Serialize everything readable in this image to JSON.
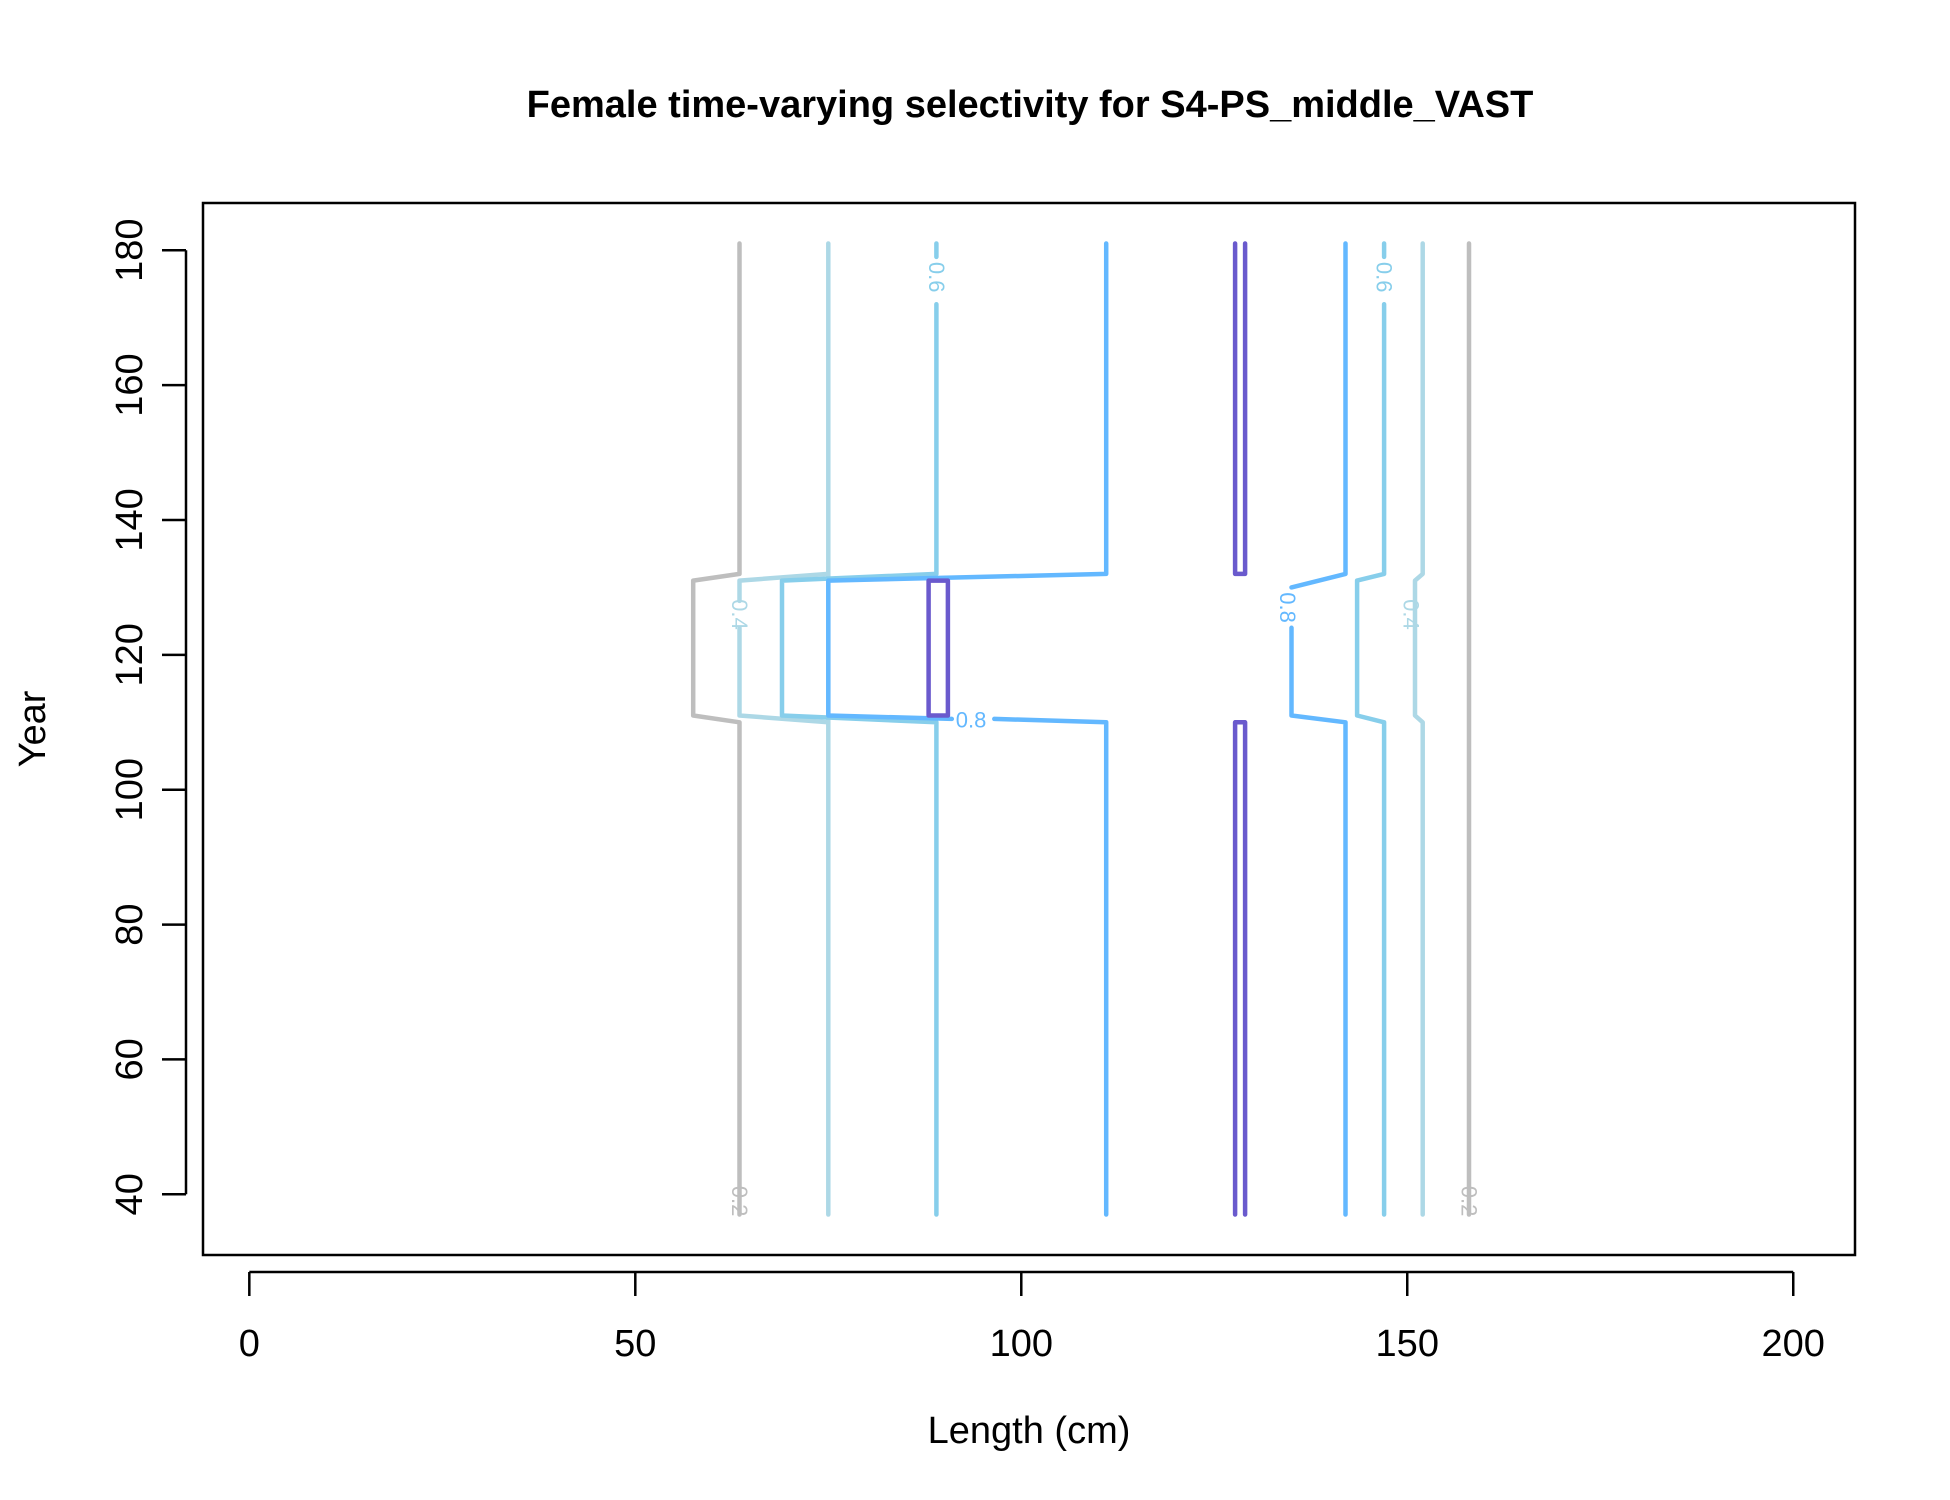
{
  "chart_data": {
    "type": "contour",
    "title": "Female time-varying selectivity for S4-PS_middle_VAST",
    "xlabel": "Length (cm)",
    "ylabel": "Year",
    "xlim": [
      -6,
      208
    ],
    "ylim": [
      31,
      187
    ],
    "x_ticks": [
      "0",
      "50",
      "100",
      "150",
      "200"
    ],
    "y_ticks": [
      "40",
      "60",
      "80",
      "100",
      "120",
      "140",
      "160",
      "180"
    ],
    "grid": false,
    "legend": "none",
    "levels": [
      {
        "level": 0.2,
        "label": "0.2",
        "color": "#BEBEBE",
        "lines": [
          [
            [
              63.5,
              37
            ],
            [
              63.5,
              110
            ],
            [
              57.5,
              111
            ],
            [
              57.5,
              131
            ],
            [
              63.5,
              132
            ],
            [
              63.5,
              181
            ]
          ],
          [
            [
              158,
              37
            ],
            [
              158,
              181
            ]
          ]
        ],
        "labels": [
          {
            "text": "0.2",
            "x": 63.5,
            "y": 39
          },
          {
            "text": "0.2",
            "x": 158,
            "y": 39
          }
        ]
      },
      {
        "level": 0.4,
        "label": "0.4",
        "color": "#ADD8E6",
        "lines": [
          [
            [
              75,
              37
            ],
            [
              75,
              181
            ]
          ],
          [
            [
              152,
              37
            ],
            [
              152,
              110
            ],
            [
              151,
              111
            ],
            [
              151,
              131
            ],
            [
              152,
              132
            ],
            [
              152,
              181
            ]
          ],
          [
            [
              63.5,
              124
            ],
            [
              63.5,
              111
            ],
            [
              75,
              110
            ]
          ],
          [
            [
              63.5,
              128
            ],
            [
              63.5,
              131
            ],
            [
              75,
              132
            ]
          ]
        ],
        "labels": [
          {
            "text": "0.4",
            "x": 63.5,
            "y": 126
          },
          {
            "text": "0.4",
            "x": 150.5,
            "y": 126
          }
        ]
      },
      {
        "level": 0.6,
        "label": "0.6",
        "color": "#87CEEB",
        "lines": [
          [
            [
              89,
              37
            ],
            [
              89,
              110
            ],
            [
              69,
              111
            ],
            [
              69,
              131
            ],
            [
              89,
              132
            ],
            [
              89,
              172
            ]
          ],
          [
            [
              89,
              179
            ],
            [
              89,
              181
            ]
          ],
          [
            [
              147,
              37
            ],
            [
              147,
              110
            ],
            [
              143.5,
              111
            ],
            [
              143.5,
              131
            ],
            [
              147,
              132
            ],
            [
              147,
              172
            ]
          ],
          [
            [
              147,
              179
            ],
            [
              147,
              181
            ]
          ]
        ],
        "labels": [
          {
            "text": "0.6",
            "x": 89,
            "y": 176
          },
          {
            "text": "0.6",
            "x": 147,
            "y": 176
          }
        ]
      },
      {
        "level": 0.8,
        "label": "0.8",
        "color": "#63B8FF",
        "lines": [
          [
            [
              111,
              37
            ],
            [
              111,
              110
            ],
            [
              96.5,
              110.5
            ]
          ],
          [
            [
              91,
              110.5
            ],
            [
              75,
              111
            ],
            [
              75,
              131
            ],
            [
              111,
              132
            ],
            [
              111,
              181
            ]
          ],
          [
            [
              142,
              37
            ],
            [
              142,
              110
            ],
            [
              135,
              111
            ],
            [
              135,
              124
            ]
          ],
          [
            [
              135,
              130
            ],
            [
              142,
              132
            ],
            [
              142,
              181
            ]
          ]
        ],
        "labels": [
          {
            "text": "0.8",
            "x": 93.5,
            "y": 110.3
          },
          {
            "text": "0.8",
            "x": 134.5,
            "y": 127
          }
        ]
      },
      {
        "level": 1.0,
        "label": "",
        "color": "#6A5ACD",
        "lines": [
          [
            [
              88,
              111
            ],
            [
              88,
              131
            ],
            [
              90.5,
              131
            ],
            [
              90.5,
              111
            ],
            [
              88,
              111
            ]
          ],
          [
            [
              127.7,
              37
            ],
            [
              127.7,
              110
            ],
            [
              129,
              110
            ],
            [
              129,
              37
            ]
          ],
          [
            [
              127.7,
              181
            ],
            [
              127.7,
              132
            ],
            [
              129,
              132
            ],
            [
              129,
              181
            ]
          ]
        ],
        "labels": []
      }
    ]
  }
}
